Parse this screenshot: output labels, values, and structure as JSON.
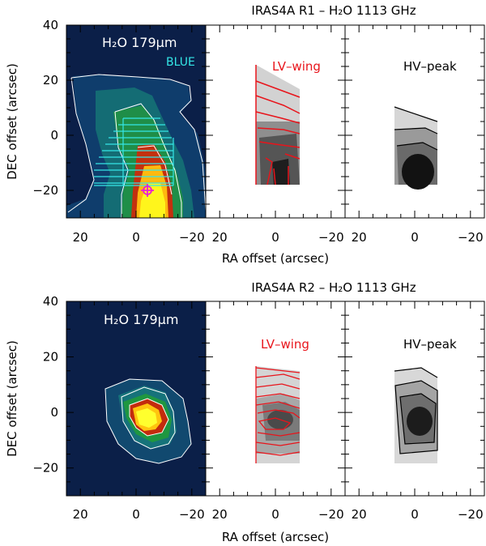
{
  "figure": {
    "panel_sets": [
      {
        "title": "IRAS4A R1 – H₂O 1113 GHz",
        "map_label": "H₂O 179μm",
        "map_sublabel": "BLUE",
        "wing_label": "LV–wing",
        "peak_label": "HV–peak"
      },
      {
        "title": "IRAS4A R2 – H₂O 1113 GHz",
        "map_label": "H₂O 179μm",
        "map_sublabel": "",
        "wing_label": "LV–wing",
        "peak_label": "HV–peak"
      }
    ],
    "xlabel": "RA offset (arcsec)",
    "ylabel": "DEC offset (arcsec)",
    "xticks": [
      "20",
      "0",
      "−20"
    ],
    "yticks": [
      "40",
      "20",
      "0",
      "−20"
    ],
    "colors": {
      "wing_contour": "#e8141b",
      "peak_contour": "#000000",
      "map_contour": "#ffffff",
      "cyan": "#34e6e6",
      "magenta": "#e81fd4"
    }
  },
  "chart_data": [
    {
      "type": "heatmap",
      "title": "IRAS4A R1 – H₂O 1113 GHz",
      "xlabel": "RA offset (arcsec)",
      "ylabel": "DEC offset (arcsec)",
      "xlim": [
        25,
        -25
      ],
      "ylim": [
        -30,
        40
      ],
      "panels": [
        "H₂O 179μm BLUE",
        "LV–wing",
        "HV–peak"
      ],
      "source_offset": [
        -5,
        -21
      ]
    },
    {
      "type": "heatmap",
      "title": "IRAS4A R2 – H₂O 1113 GHz",
      "xlabel": "RA offset (arcsec)",
      "ylabel": "DEC offset (arcsec)",
      "xlim": [
        25,
        -25
      ],
      "ylim": [
        -30,
        40
      ],
      "panels": [
        "H₂O 179μm",
        "LV–wing",
        "HV–peak"
      ]
    }
  ]
}
